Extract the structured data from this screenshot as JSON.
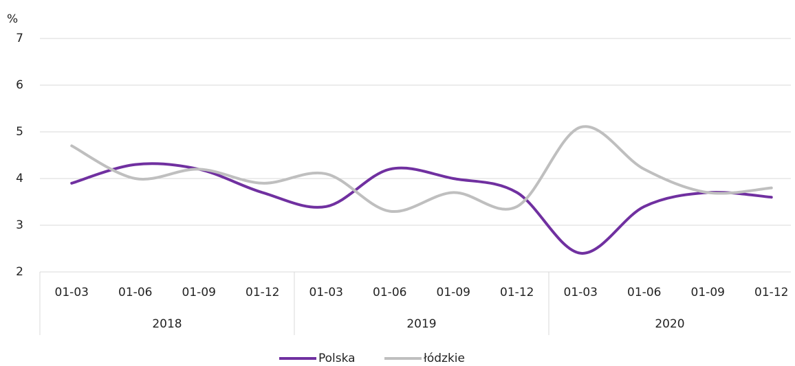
{
  "chart_data": {
    "type": "line",
    "y_label": "%",
    "categories": [
      "01-03",
      "01-06",
      "01-09",
      "01-12",
      "01-03",
      "01-06",
      "01-09",
      "01-12",
      "01-03",
      "01-06",
      "01-09",
      "01-12"
    ],
    "groups": [
      "2018",
      "2019",
      "2020"
    ],
    "series": [
      {
        "name": "Polska",
        "color": "#7030a0",
        "values": [
          3.9,
          4.3,
          4.2,
          3.7,
          3.4,
          4.2,
          4.0,
          3.7,
          2.4,
          3.4,
          3.7,
          3.6
        ]
      },
      {
        "name": "łódzkie",
        "color": "#bfbfbf",
        "values": [
          4.7,
          4.0,
          4.2,
          3.9,
          4.1,
          3.3,
          3.7,
          3.4,
          5.1,
          4.2,
          3.7,
          3.8
        ]
      }
    ],
    "ylim": [
      2,
      7
    ],
    "yticks": [
      2,
      3,
      4,
      5,
      6,
      7
    ],
    "grid": true,
    "smooth": true,
    "legend": "bottom"
  }
}
